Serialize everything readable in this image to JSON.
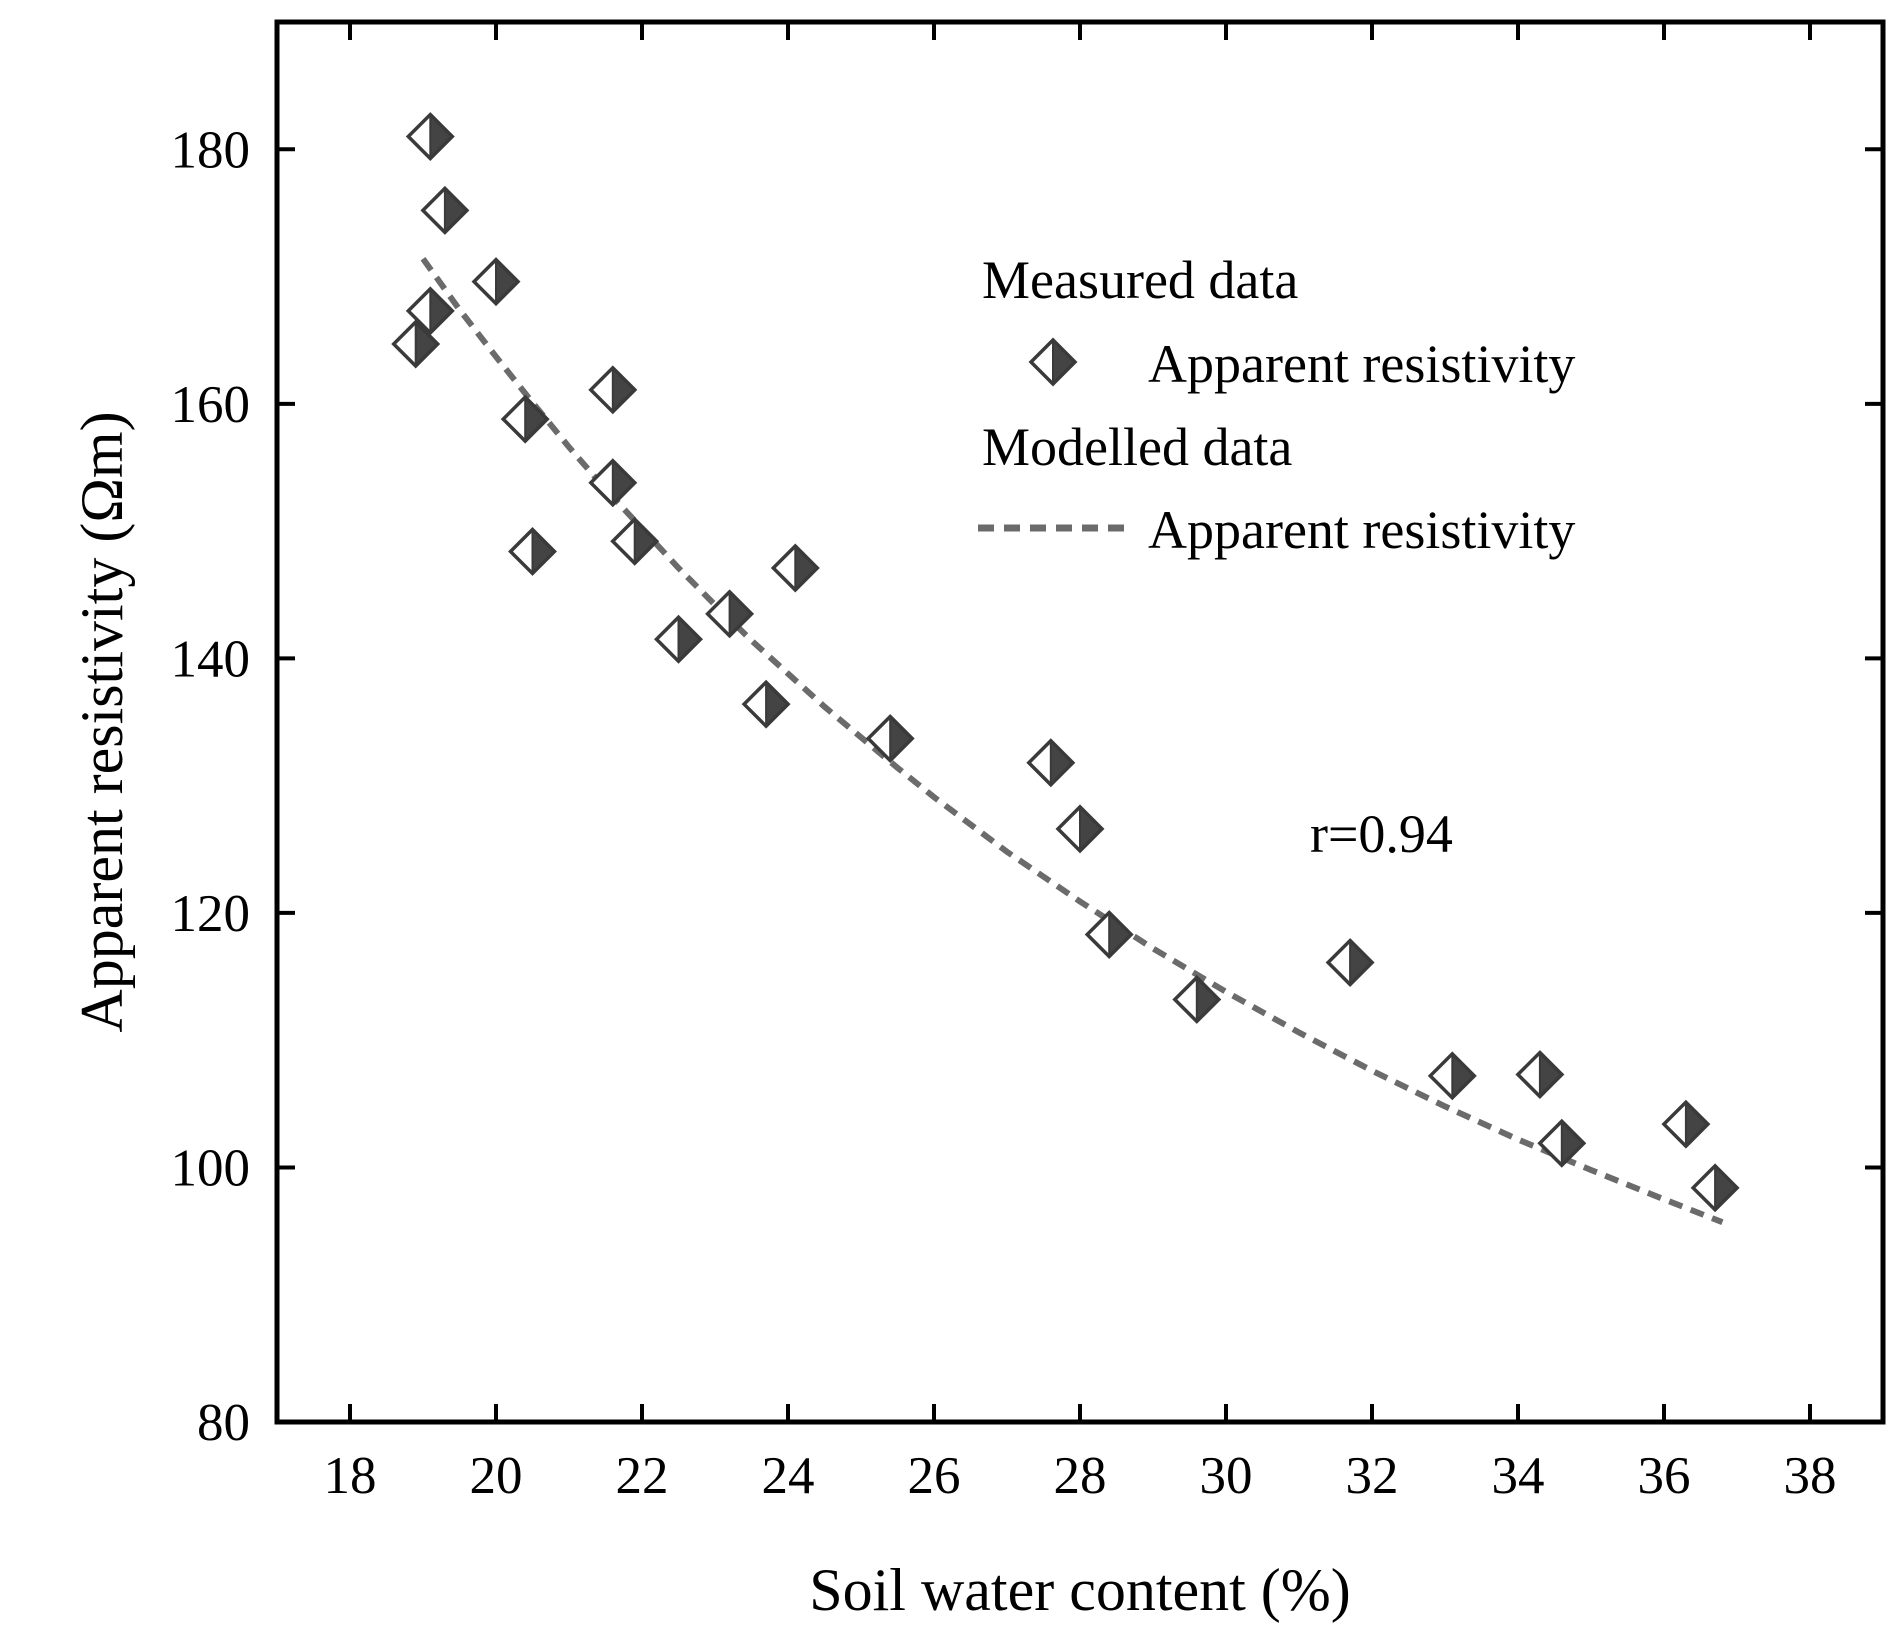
{
  "chart_data": {
    "type": "scatter",
    "title": "",
    "xlabel": "Soil water content (%)",
    "ylabel": "Apparent resistivity (Ωm)",
    "xlim": [
      17,
      39
    ],
    "ylim": [
      80,
      190
    ],
    "xticks": [
      18,
      20,
      22,
      24,
      26,
      28,
      30,
      32,
      34,
      36,
      38
    ],
    "yticks": [
      80,
      100,
      120,
      140,
      160,
      180
    ],
    "grid": false,
    "legend_position": "top-right",
    "legend": {
      "measured_heading": "Measured data",
      "measured_label": "Apparent resistivity",
      "modelled_heading": "Modelled data",
      "modelled_label": "Apparent resistivity"
    },
    "annotation": "r=0.94",
    "series": [
      {
        "name": "Measured data - Apparent resistivity",
        "kind": "scatter",
        "marker": "half-filled-diamond",
        "x": [
          19.1,
          19.3,
          19.1,
          18.9,
          20.0,
          20.4,
          20.5,
          21.6,
          21.6,
          21.9,
          22.5,
          23.2,
          23.7,
          24.1,
          25.4,
          27.6,
          28.0,
          28.4,
          29.6,
          31.7,
          33.1,
          34.3,
          34.6,
          36.3,
          36.7
        ],
        "y": [
          181.0,
          175.2,
          167.3,
          164.7,
          169.6,
          158.8,
          148.4,
          161.1,
          153.8,
          149.2,
          141.5,
          143.5,
          136.4,
          147.1,
          133.7,
          131.8,
          126.6,
          118.3,
          113.2,
          116.1,
          107.2,
          107.3,
          101.9,
          103.4,
          98.4
        ]
      },
      {
        "name": "Modelled data - Apparent resistivity",
        "kind": "line",
        "style": "dashed",
        "color": "#6b6b6b",
        "x": [
          19.0,
          19.5,
          20.0,
          20.5,
          21.0,
          21.5,
          22.0,
          22.5,
          23.0,
          23.5,
          24.0,
          24.5,
          25.0,
          25.5,
          26.0,
          27.0,
          28.0,
          29.0,
          30.0,
          31.0,
          32.0,
          33.0,
          34.0,
          35.0,
          36.0,
          36.8
        ],
        "y": [
          171.4,
          167.4,
          163.7,
          160.1,
          156.6,
          153.3,
          150.2,
          147.1,
          144.2,
          141.4,
          138.8,
          136.2,
          133.8,
          131.4,
          129.1,
          124.8,
          120.9,
          117.2,
          113.8,
          110.6,
          107.6,
          104.8,
          102.2,
          99.8,
          97.5,
          95.7
        ]
      }
    ],
    "colors": {
      "marker_dark": "#444444",
      "marker_light": "#ffffff",
      "marker_edge": "#3a3a3a",
      "axis": "#000000"
    }
  }
}
